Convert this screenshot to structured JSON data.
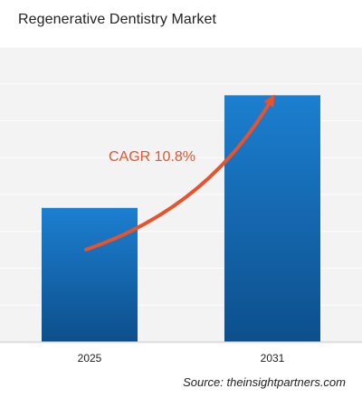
{
  "title": "Regenerative Dentistry Market",
  "source": "Source: theinsightpartners.com",
  "annotation": "CAGR 10.8%",
  "colors": {
    "bar_top": "#1c7fd0",
    "bar_bottom": "#0d4f8c",
    "arrow": "#e8522c",
    "plot_bg": "#f3f3f3",
    "grid": "#ffffff"
  },
  "chart_data": {
    "type": "bar",
    "categories": [
      "2025",
      "2031"
    ],
    "values": [
      1.0,
      1.84
    ],
    "title": "Regenerative Dentistry Market",
    "xlabel": "",
    "ylabel": "",
    "ylim": [
      0,
      2.2
    ],
    "grid": true,
    "legend": "none",
    "annotation": "CAGR 10.8%"
  }
}
